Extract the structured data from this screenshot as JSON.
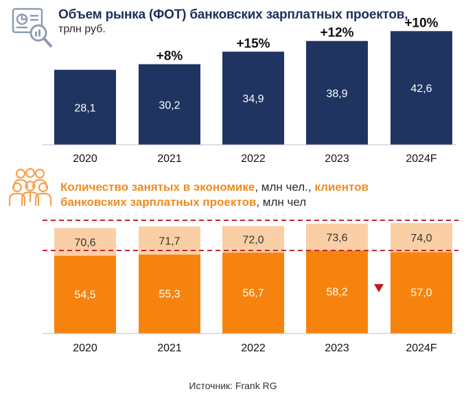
{
  "colors": {
    "navy": "#1f3461",
    "orange": "#f7830f",
    "peach": "#fbcfa5",
    "dashed_line": "#c0272d",
    "down_marker": "#c0181f"
  },
  "icons": {
    "top": "chart-magnifier-icon",
    "bottom": "people-group-icon",
    "marker": "down-triangle-icon"
  },
  "source": "Источник: Frank RG",
  "chart_data": [
    {
      "type": "bar",
      "title": "Объем рынка (ФОТ) банковских зарплатных проектов,",
      "subtitle": "трлн руб.",
      "categories": [
        "2020",
        "2021",
        "2022",
        "2023",
        "2024F"
      ],
      "values": [
        28.1,
        30.2,
        34.9,
        38.9,
        42.6
      ],
      "value_labels": [
        "28,1",
        "30,2",
        "34,9",
        "38,9",
        "42,6"
      ],
      "growth_labels": [
        "",
        "+8%",
        "+15%",
        "+12%",
        "+10%"
      ],
      "ylim": [
        0,
        45
      ]
    },
    {
      "type": "bar",
      "title_parts": [
        {
          "text": "Количество занятых в экономике",
          "highlight": true
        },
        {
          "text": ", млн чел., ",
          "highlight": false
        },
        {
          "text": "клиентов",
          "highlight": true
        },
        {
          "text": "банковских зарплатных проектов",
          "highlight": true
        },
        {
          "text": ", млн чел",
          "highlight": false
        }
      ],
      "categories": [
        "2020",
        "2021",
        "2022",
        "2023",
        "2024F"
      ],
      "series": [
        {
          "values": [
            54.5,
            55.3,
            56.7,
            58.2,
            57.0
          ],
          "labels": [
            "54,5",
            "55,3",
            "56,7",
            "58,2",
            "57,0"
          ]
        },
        {
          "values": [
            70.6,
            71.7,
            72.0,
            73.6,
            74.0
          ],
          "labels": [
            "70,6",
            "71,7",
            "72,0",
            "73,6",
            "74,0"
          ]
        }
      ],
      "down_marker_category": "2024F",
      "dashed_reference_lines": true
    }
  ]
}
